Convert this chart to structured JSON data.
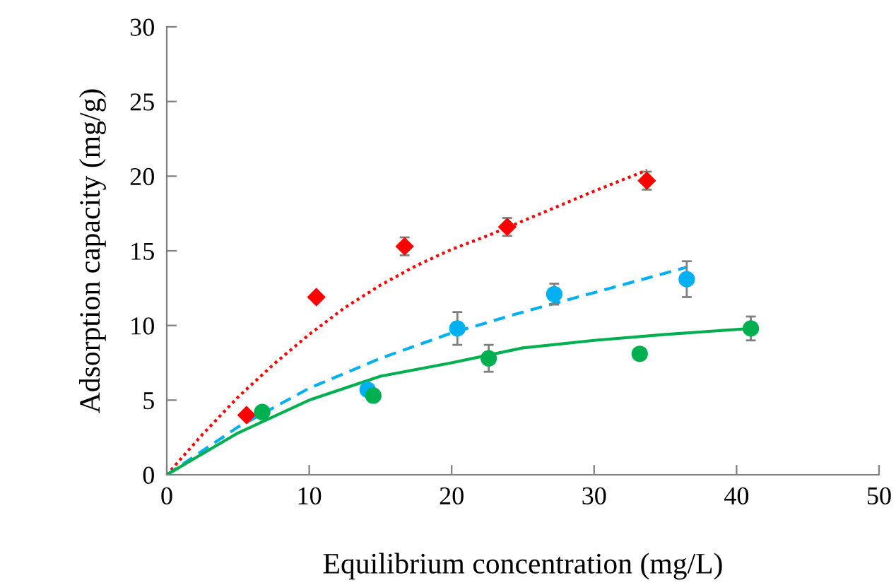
{
  "chart_data": {
    "type": "scatter",
    "xlabel": "Equilibrium concentration (mg/L)",
    "ylabel": "Adsorption capacity (mg/g)",
    "xlim": [
      0,
      50
    ],
    "ylim": [
      0,
      30
    ],
    "xticks": [
      0,
      10,
      20,
      30,
      40,
      50
    ],
    "yticks": [
      0,
      5,
      10,
      15,
      20,
      25,
      30
    ],
    "grid": false,
    "series": [
      {
        "marker": "diamond",
        "color": "#ff0000",
        "x": [
          5.6,
          10.5,
          16.7,
          23.9,
          33.7
        ],
        "values": [
          4.0,
          11.9,
          15.3,
          16.6,
          19.7
        ],
        "errors": [
          null,
          null,
          0.6,
          0.6,
          0.6
        ]
      },
      {
        "marker": "circle",
        "color": "#00b0f0",
        "x": [
          14.1,
          20.4,
          27.2,
          36.5
        ],
        "values": [
          5.7,
          9.8,
          12.1,
          13.1
        ],
        "errors": [
          null,
          1.1,
          0.7,
          1.2
        ]
      },
      {
        "marker": "circle",
        "color": "#00b050",
        "x": [
          6.7,
          14.5,
          22.6,
          33.2,
          41.0
        ],
        "values": [
          4.2,
          5.3,
          7.8,
          8.1,
          9.8
        ],
        "errors": [
          null,
          null,
          0.9,
          null,
          0.8
        ]
      },
      {
        "type": "line",
        "line_style": "dotted",
        "color": "#ff0000",
        "x": [
          0,
          2.5,
          5,
          7.5,
          10,
          12.5,
          15,
          17.5,
          20,
          22.5,
          25,
          30,
          33.7
        ],
        "values": [
          0,
          2.7,
          5.2,
          7.4,
          9.4,
          11.2,
          12.7,
          14.0,
          15.1,
          16.0,
          17.0,
          19.0,
          20.4
        ]
      },
      {
        "type": "line",
        "line_style": "dashed",
        "color": "#00b0f0",
        "x": [
          0,
          5,
          10,
          15,
          20,
          25,
          30,
          36.5
        ],
        "values": [
          0,
          3.2,
          5.8,
          7.8,
          9.5,
          10.9,
          12.2,
          13.9
        ]
      },
      {
        "type": "line",
        "line_style": "solid",
        "color": "#00b050",
        "x": [
          0,
          5,
          10,
          15,
          20,
          25,
          30,
          35,
          41
        ],
        "values": [
          0,
          2.8,
          5.0,
          6.6,
          7.5,
          8.5,
          9.0,
          9.4,
          9.8
        ]
      }
    ]
  }
}
